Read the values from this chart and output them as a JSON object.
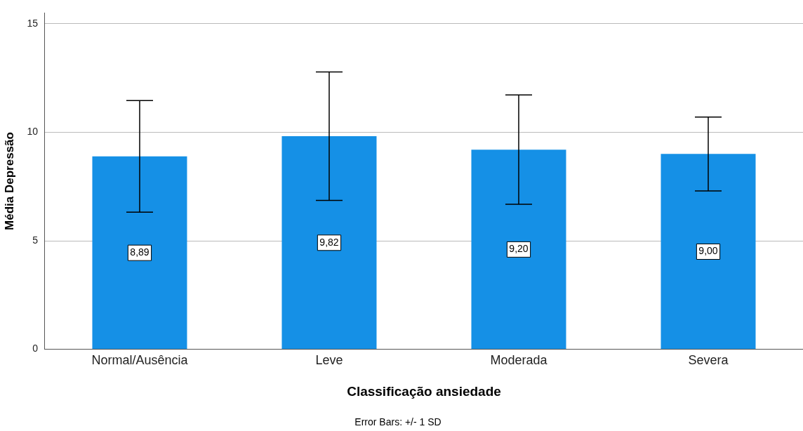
{
  "chart_data": {
    "type": "bar",
    "xlabel": "Classificação ansiedade",
    "ylabel": "Média Depressão",
    "categories": [
      "Normal/Ausência",
      "Leve",
      "Moderada",
      "Severa"
    ],
    "values": [
      8.89,
      9.82,
      9.2,
      9.0
    ],
    "errors": [
      2.57,
      2.96,
      2.52,
      1.7
    ],
    "value_labels": [
      "8,89",
      "9,82",
      "9,20",
      "9,00"
    ],
    "color": "#1590e6",
    "ylim": [
      0,
      15.5
    ],
    "yticks": [
      0,
      5,
      10,
      15
    ],
    "grid": "y",
    "legend": false,
    "annotations": [
      "Error Bars: +/- 1 SD"
    ]
  }
}
